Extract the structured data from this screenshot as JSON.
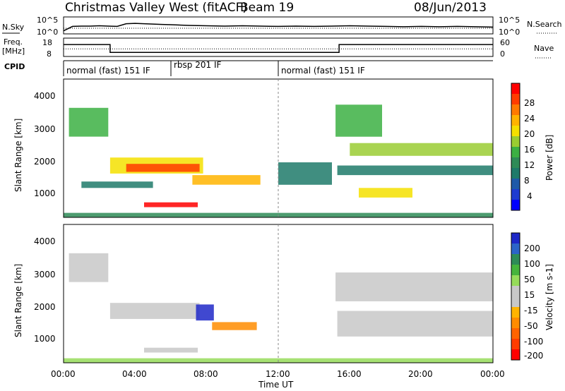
{
  "header": {
    "station": "Christmas Valley West (fitACF)",
    "beam": "Beam 19",
    "date": "08/Jun/2013"
  },
  "nsky": {
    "label": "N.Sky",
    "left_ticks": [
      "10^5",
      "10^0"
    ],
    "right_label": "N.Search",
    "right_ticks": [
      "10^5",
      "10^0"
    ]
  },
  "freq": {
    "label_line1": "Freq.",
    "label_line2": "[MHz]",
    "left_ticks": [
      "18",
      "8"
    ],
    "right_label": "Nave",
    "right_ticks": [
      "60",
      "0"
    ]
  },
  "cpid": {
    "label": "CPID",
    "segments": [
      {
        "start_hour": 0,
        "end_hour": 6,
        "text": "normal (fast) 151 IF"
      },
      {
        "start_hour": 6,
        "end_hour": 12,
        "text": "rbsp 201 IF"
      },
      {
        "start_hour": 12,
        "end_hour": 24,
        "text": "normal (fast) 151 IF"
      }
    ]
  },
  "axes": {
    "ylabel": "Slant Range [km]",
    "xlabel": "Time UT",
    "yticks": [
      "4000",
      "3000",
      "2000",
      "1000"
    ],
    "xticks": [
      "00:00",
      "04:00",
      "08:00",
      "12:00",
      "16:00",
      "20:00",
      "00:00"
    ]
  },
  "colorbars": {
    "power": {
      "title": "Power [dB]",
      "labels": [
        "28",
        "24",
        "20",
        "16",
        "12",
        "8",
        "4"
      ],
      "colors": [
        "#ff0000",
        "#ff3c00",
        "#ff7a00",
        "#ffb400",
        "#f5e000",
        "#9acd32",
        "#3cb043",
        "#2e8b57",
        "#1e7a6a",
        "#1f5aa8",
        "#1e3cd0",
        "#0000ff"
      ]
    },
    "velocity": {
      "title": "Velocity [m s-1]",
      "labels": [
        "200",
        "100",
        "50",
        "15",
        "-15",
        "-50",
        "-100",
        "-200"
      ],
      "colors": [
        "#1e28c8",
        "#2c64c8",
        "#2e8b57",
        "#46b43c",
        "#96dc5a",
        "#c8c8c8",
        "#c8c8c8",
        "#ffb400",
        "#ff8c00",
        "#ff6400",
        "#ff3c00",
        "#ff0000"
      ]
    }
  },
  "chart_data": [
    {
      "type": "line",
      "name": "nsky",
      "x_hour": [
        0,
        0.5,
        1,
        1.5,
        2,
        2.5,
        3,
        3.5,
        4,
        4.5,
        5,
        5.5,
        6,
        7,
        8,
        9,
        10,
        11,
        12,
        13,
        14,
        15,
        16,
        17,
        18,
        19,
        20,
        21,
        22,
        23,
        24
      ],
      "values_log10": [
        0.9,
        2.2,
        2.3,
        2.3,
        2.4,
        2.3,
        2.2,
        3.0,
        3.1,
        3.0,
        2.9,
        2.8,
        2.7,
        2.5,
        2.4,
        2.3,
        2.4,
        2.3,
        2.2,
        2.3,
        2.2,
        2.3,
        2.4,
        2.3,
        2.2,
        2.1,
        2.2,
        2.1,
        2.2,
        2.1,
        2.0
      ],
      "ylim_log10": [
        0,
        5
      ]
    },
    {
      "type": "line",
      "name": "freq",
      "x_hour": [
        0,
        2.6,
        2.6,
        15.4,
        15.4,
        24
      ],
      "values_mhz": [
        14.5,
        14.5,
        10.2,
        10.2,
        14.5,
        14.5
      ],
      "ylim": [
        8,
        18
      ]
    },
    {
      "type": "line",
      "name": "nave",
      "x_hour": [
        0,
        24
      ],
      "values": [
        25,
        25
      ],
      "ylim": [
        0,
        60
      ]
    },
    {
      "type": "heatmap",
      "parameter": "power",
      "x_range_hours": [
        0,
        24
      ],
      "y_range_km": [
        180,
        4500
      ],
      "color_range": [
        0,
        30
      ],
      "regions": [
        {
          "t0": 0.3,
          "t1": 2.5,
          "r0": 3600,
          "r1": 2700,
          "val": 14
        },
        {
          "t0": 2.6,
          "t1": 7.8,
          "r0": 2050,
          "r1": 1550,
          "val": 20
        },
        {
          "t0": 3.5,
          "t1": 7.6,
          "r0": 1850,
          "r1": 1600,
          "val": 27
        },
        {
          "t0": 7.2,
          "t1": 11.0,
          "r0": 1500,
          "r1": 1200,
          "val": 22
        },
        {
          "t0": 4.5,
          "t1": 7.5,
          "r0": 650,
          "r1": 500,
          "val": 28
        },
        {
          "t0": 1.0,
          "t1": 5.0,
          "r0": 1300,
          "r1": 1100,
          "val": 9
        },
        {
          "t0": 12.0,
          "t1": 15.0,
          "r0": 1900,
          "r1": 1200,
          "val": 8
        },
        {
          "t0": 15.2,
          "t1": 17.8,
          "r0": 3700,
          "r1": 2700,
          "val": 14
        },
        {
          "t0": 16.0,
          "t1": 24.0,
          "r0": 2500,
          "r1": 2100,
          "val": 16
        },
        {
          "t0": 15.3,
          "t1": 24.0,
          "r0": 1800,
          "r1": 1500,
          "val": 10
        },
        {
          "t0": 16.5,
          "t1": 19.5,
          "r0": 1100,
          "r1": 800,
          "val": 20
        },
        {
          "t0": 0.0,
          "t1": 24.0,
          "r0": 320,
          "r1": 180,
          "val": 12
        }
      ]
    },
    {
      "type": "heatmap",
      "parameter": "velocity",
      "x_range_hours": [
        0,
        24
      ],
      "y_range_km": [
        180,
        4500
      ],
      "color_range": [
        -200,
        200
      ],
      "regions": [
        {
          "t0": 0.3,
          "t1": 2.5,
          "r0": 3600,
          "r1": 2700,
          "val": 0
        },
        {
          "t0": 2.6,
          "t1": 7.6,
          "r0": 2050,
          "r1": 1550,
          "val": -5
        },
        {
          "t0": 7.4,
          "t1": 8.4,
          "r0": 2000,
          "r1": 1500,
          "val": 180
        },
        {
          "t0": 8.3,
          "t1": 10.8,
          "r0": 1450,
          "r1": 1200,
          "val": -70
        },
        {
          "t0": 4.5,
          "t1": 7.5,
          "r0": 650,
          "r1": 500,
          "val": 0
        },
        {
          "t0": 15.2,
          "t1": 24.0,
          "r0": 3000,
          "r1": 2100,
          "val": 0
        },
        {
          "t0": 15.3,
          "t1": 24.0,
          "r0": 1800,
          "r1": 1000,
          "val": 0
        },
        {
          "t0": 0.0,
          "t1": 24.0,
          "r0": 320,
          "r1": 180,
          "val": 40
        }
      ]
    }
  ]
}
